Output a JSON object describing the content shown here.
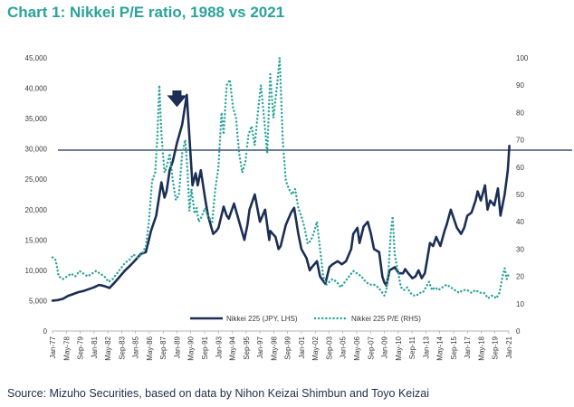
{
  "header": {
    "title": "Chart 1: Nikkei P/E ratio, 1988 vs 2021"
  },
  "footer": {
    "source": "Source: Mizuho Securities, based on data by Nihon Keizai Shimbun and Toyo Keizai"
  },
  "chart_data": {
    "type": "line",
    "title": "Chart 1: Nikkei P/E ratio, 1988 vs 2021",
    "x_tick_labels": [
      "Jan-77",
      "May-78",
      "Sep-79",
      "Jan-81",
      "May-82",
      "Sep-83",
      "Jan-85",
      "May-86",
      "Sep-87",
      "Jan-89",
      "May-90",
      "Sep-91",
      "Jan-93",
      "May-94",
      "Sep-95",
      "Jan-97",
      "May-98",
      "Sep-99",
      "Jan-01",
      "May-02",
      "Sep-03",
      "Jan-05",
      "May-06",
      "Sep-07",
      "Jan-09",
      "May-10",
      "Sep-11",
      "Jan-13",
      "May-14",
      "Sep-15",
      "Jan-17",
      "May-18",
      "Sep-19",
      "Jan-21"
    ],
    "x_range": [
      "Jan-77",
      "Jan-21"
    ],
    "y_left": {
      "ticks": [
        "0",
        "5,000",
        "10,000",
        "15,000",
        "20,000",
        "25,000",
        "30,000",
        "35,000",
        "40,000",
        "45,000"
      ],
      "range": [
        0,
        45000
      ]
    },
    "y_right": {
      "ticks": [
        "0",
        "10",
        "20",
        "30",
        "40",
        "50",
        "60",
        "70",
        "80",
        "90",
        "100"
      ],
      "range": [
        0,
        100
      ]
    },
    "reference_line": {
      "axis": "left",
      "value": 29800,
      "color": "#1b2f55"
    },
    "annotation": {
      "type": "arrow",
      "at": "Jan-89",
      "points_down_to": 36000,
      "color": "#1b2f55"
    },
    "legend_position": "bottom-center",
    "series": [
      {
        "name": "Nikkei 225 (JPY, LHS)",
        "axis": "left",
        "style": "solid",
        "color": "#1b2f55",
        "points": [
          [
            1977.0,
            5000
          ],
          [
            1977.5,
            5100
          ],
          [
            1978.0,
            5300
          ],
          [
            1978.5,
            5800
          ],
          [
            1979.0,
            6100
          ],
          [
            1979.5,
            6400
          ],
          [
            1980.0,
            6600
          ],
          [
            1980.5,
            6900
          ],
          [
            1981.0,
            7200
          ],
          [
            1981.5,
            7600
          ],
          [
            1982.0,
            7400
          ],
          [
            1982.5,
            7100
          ],
          [
            1983.0,
            8000
          ],
          [
            1983.5,
            9000
          ],
          [
            1984.0,
            10000
          ],
          [
            1984.5,
            10800
          ],
          [
            1985.0,
            11700
          ],
          [
            1985.5,
            12700
          ],
          [
            1986.0,
            13000
          ],
          [
            1986.5,
            16500
          ],
          [
            1987.0,
            19000
          ],
          [
            1987.5,
            24500
          ],
          [
            1987.8,
            22000
          ],
          [
            1988.0,
            23000
          ],
          [
            1988.3,
            26500
          ],
          [
            1988.6,
            28000
          ],
          [
            1989.0,
            31000
          ],
          [
            1989.5,
            34000
          ],
          [
            1989.95,
            38900
          ],
          [
            1990.2,
            32000
          ],
          [
            1990.5,
            24000
          ],
          [
            1990.8,
            26000
          ],
          [
            1991.0,
            24000
          ],
          [
            1991.3,
            26500
          ],
          [
            1991.7,
            22000
          ],
          [
            1992.0,
            19000
          ],
          [
            1992.5,
            16000
          ],
          [
            1992.8,
            16500
          ],
          [
            1993.0,
            17000
          ],
          [
            1993.5,
            20500
          ],
          [
            1993.8,
            19000
          ],
          [
            1994.0,
            18500
          ],
          [
            1994.5,
            21000
          ],
          [
            1995.0,
            18000
          ],
          [
            1995.5,
            15000
          ],
          [
            1995.8,
            17500
          ],
          [
            1996.0,
            20000
          ],
          [
            1996.5,
            22500
          ],
          [
            1997.0,
            18000
          ],
          [
            1997.5,
            20000
          ],
          [
            1997.9,
            15000
          ],
          [
            1998.0,
            16500
          ],
          [
            1998.5,
            15500
          ],
          [
            1998.8,
            13500
          ],
          [
            1999.0,
            14000
          ],
          [
            1999.5,
            17500
          ],
          [
            2000.0,
            19500
          ],
          [
            2000.3,
            20300
          ],
          [
            2000.7,
            16000
          ],
          [
            2001.0,
            13500
          ],
          [
            2001.5,
            12000
          ],
          [
            2001.8,
            10000
          ],
          [
            2002.0,
            10500
          ],
          [
            2002.5,
            11500
          ],
          [
            2002.8,
            9000
          ],
          [
            2003.0,
            8500
          ],
          [
            2003.3,
            7800
          ],
          [
            2003.7,
            10500
          ],
          [
            2004.0,
            11000
          ],
          [
            2004.5,
            11500
          ],
          [
            2004.9,
            11000
          ],
          [
            2005.3,
            11500
          ],
          [
            2005.8,
            13500
          ],
          [
            2006.0,
            16000
          ],
          [
            2006.4,
            17000
          ],
          [
            2006.6,
            14500
          ],
          [
            2007.0,
            17200
          ],
          [
            2007.4,
            18000
          ],
          [
            2007.7,
            16000
          ],
          [
            2008.0,
            13500
          ],
          [
            2008.5,
            13000
          ],
          [
            2008.8,
            9000
          ],
          [
            2009.0,
            8000
          ],
          [
            2009.2,
            7500
          ],
          [
            2009.5,
            10000
          ],
          [
            2010.0,
            10500
          ],
          [
            2010.4,
            9500
          ],
          [
            2010.8,
            9500
          ],
          [
            2011.0,
            10200
          ],
          [
            2011.3,
            9500
          ],
          [
            2011.7,
            8700
          ],
          [
            2012.0,
            9000
          ],
          [
            2012.3,
            10000
          ],
          [
            2012.6,
            8700
          ],
          [
            2012.9,
            9500
          ],
          [
            2013.0,
            10500
          ],
          [
            2013.4,
            14500
          ],
          [
            2013.7,
            14000
          ],
          [
            2014.0,
            15500
          ],
          [
            2014.4,
            14000
          ],
          [
            2014.8,
            16500
          ],
          [
            2015.0,
            17500
          ],
          [
            2015.4,
            20000
          ],
          [
            2015.8,
            18000
          ],
          [
            2016.0,
            17000
          ],
          [
            2016.4,
            16000
          ],
          [
            2016.7,
            17000
          ],
          [
            2017.0,
            19000
          ],
          [
            2017.4,
            19500
          ],
          [
            2017.8,
            21500
          ],
          [
            2018.0,
            23000
          ],
          [
            2018.3,
            21500
          ],
          [
            2018.7,
            24000
          ],
          [
            2018.95,
            20000
          ],
          [
            2019.2,
            21500
          ],
          [
            2019.6,
            20700
          ],
          [
            2019.95,
            23500
          ],
          [
            2020.2,
            19000
          ],
          [
            2020.6,
            22500
          ],
          [
            2020.9,
            26500
          ],
          [
            2021.05,
            30500
          ]
        ]
      },
      {
        "name": "Nikkei 225 P/E (RHS)",
        "axis": "right",
        "style": "dotted",
        "color": "#2aa39a",
        "points": [
          [
            1977.0,
            27
          ],
          [
            1977.3,
            26
          ],
          [
            1977.6,
            20
          ],
          [
            1978.0,
            19
          ],
          [
            1978.4,
            20
          ],
          [
            1978.8,
            21
          ],
          [
            1979.2,
            20
          ],
          [
            1979.6,
            22
          ],
          [
            1980.0,
            21
          ],
          [
            1980.4,
            20
          ],
          [
            1980.8,
            21
          ],
          [
            1981.2,
            22
          ],
          [
            1981.6,
            21
          ],
          [
            1982.0,
            20
          ],
          [
            1982.4,
            18
          ],
          [
            1982.8,
            19
          ],
          [
            1983.2,
            21
          ],
          [
            1983.6,
            23
          ],
          [
            1984.0,
            25
          ],
          [
            1984.4,
            26
          ],
          [
            1984.8,
            28
          ],
          [
            1985.2,
            27
          ],
          [
            1985.6,
            28
          ],
          [
            1986.0,
            31
          ],
          [
            1986.3,
            40
          ],
          [
            1986.6,
            55
          ],
          [
            1986.9,
            58
          ],
          [
            1987.1,
            70
          ],
          [
            1987.3,
            90
          ],
          [
            1987.5,
            72
          ],
          [
            1987.8,
            58
          ],
          [
            1988.0,
            60
          ],
          [
            1988.3,
            65
          ],
          [
            1988.6,
            55
          ],
          [
            1988.9,
            48
          ],
          [
            1989.2,
            50
          ],
          [
            1989.5,
            65
          ],
          [
            1989.8,
            70
          ],
          [
            1990.0,
            60
          ],
          [
            1990.2,
            44
          ],
          [
            1990.4,
            52
          ],
          [
            1990.7,
            43
          ],
          [
            1990.9,
            45
          ],
          [
            1991.1,
            40
          ],
          [
            1991.4,
            42
          ],
          [
            1991.7,
            45
          ],
          [
            1992.0,
            42
          ],
          [
            1992.4,
            40
          ],
          [
            1992.7,
            52
          ],
          [
            1993.0,
            60
          ],
          [
            1993.3,
            80
          ],
          [
            1993.5,
            72
          ],
          [
            1993.8,
            90
          ],
          [
            1994.1,
            92
          ],
          [
            1994.4,
            82
          ],
          [
            1994.7,
            78
          ],
          [
            1995.0,
            65
          ],
          [
            1995.3,
            58
          ],
          [
            1995.6,
            62
          ],
          [
            1995.9,
            72
          ],
          [
            1996.2,
            75
          ],
          [
            1996.5,
            68
          ],
          [
            1996.8,
            80
          ],
          [
            1997.1,
            90
          ],
          [
            1997.4,
            78
          ],
          [
            1997.7,
            65
          ],
          [
            1998.0,
            94
          ],
          [
            1998.3,
            78
          ],
          [
            1998.6,
            88
          ],
          [
            1998.9,
            100
          ],
          [
            1999.2,
            70
          ],
          [
            1999.5,
            55
          ],
          [
            1999.8,
            52
          ],
          [
            2000.1,
            50
          ],
          [
            2000.4,
            52
          ],
          [
            2000.7,
            45
          ],
          [
            2001.0,
            42
          ],
          [
            2001.3,
            38
          ],
          [
            2001.6,
            32
          ],
          [
            2001.9,
            33
          ],
          [
            2002.2,
            36
          ],
          [
            2002.5,
            40
          ],
          [
            2002.8,
            30
          ],
          [
            2003.1,
            20
          ],
          [
            2003.4,
            17
          ],
          [
            2003.7,
            18
          ],
          [
            2004.0,
            19
          ],
          [
            2004.4,
            18
          ],
          [
            2004.8,
            16
          ],
          [
            2005.2,
            18
          ],
          [
            2005.6,
            20
          ],
          [
            2006.0,
            22
          ],
          [
            2006.4,
            21
          ],
          [
            2006.8,
            20
          ],
          [
            2007.2,
            18
          ],
          [
            2007.6,
            17
          ],
          [
            2008.0,
            17
          ],
          [
            2008.4,
            16
          ],
          [
            2008.8,
            14
          ],
          [
            2009.0,
            13
          ],
          [
            2009.2,
            15
          ],
          [
            2009.4,
            22
          ],
          [
            2009.6,
            35
          ],
          [
            2009.8,
            42
          ],
          [
            2010.0,
            28
          ],
          [
            2010.3,
            22
          ],
          [
            2010.6,
            16
          ],
          [
            2010.9,
            15
          ],
          [
            2011.2,
            16
          ],
          [
            2011.5,
            14
          ],
          [
            2011.8,
            13
          ],
          [
            2012.1,
            13
          ],
          [
            2012.4,
            14
          ],
          [
            2012.7,
            14
          ],
          [
            2013.0,
            16
          ],
          [
            2013.3,
            18
          ],
          [
            2013.6,
            15
          ],
          [
            2013.9,
            16
          ],
          [
            2014.2,
            15
          ],
          [
            2014.6,
            16
          ],
          [
            2015.0,
            17
          ],
          [
            2015.4,
            16
          ],
          [
            2015.8,
            15
          ],
          [
            2016.2,
            14
          ],
          [
            2016.6,
            15
          ],
          [
            2017.0,
            15
          ],
          [
            2017.4,
            14
          ],
          [
            2017.8,
            15
          ],
          [
            2018.2,
            14
          ],
          [
            2018.6,
            14
          ],
          [
            2019.0,
            12
          ],
          [
            2019.4,
            13
          ],
          [
            2019.8,
            12
          ],
          [
            2020.1,
            14
          ],
          [
            2020.4,
            20
          ],
          [
            2020.6,
            23
          ],
          [
            2020.8,
            19
          ],
          [
            2021.0,
            21
          ]
        ]
      }
    ]
  }
}
